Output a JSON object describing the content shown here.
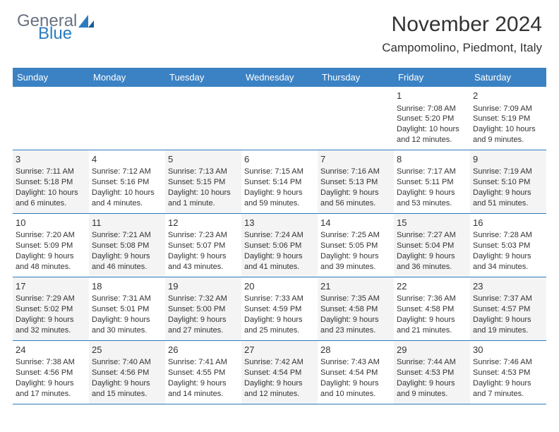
{
  "logo": {
    "general": "General",
    "blue": "Blue"
  },
  "title": "November 2024",
  "location": "Campomolino, Piedmont, Italy",
  "colors": {
    "header_bg": "#3b82c4",
    "border": "#2b7bbf",
    "text": "#333333",
    "shaded": "#f4f4f4",
    "logo_gray": "#6b7280",
    "logo_blue": "#2b7bbf"
  },
  "dayNames": [
    "Sunday",
    "Monday",
    "Tuesday",
    "Wednesday",
    "Thursday",
    "Friday",
    "Saturday"
  ],
  "weeks": [
    [
      null,
      null,
      null,
      null,
      null,
      {
        "n": "1",
        "sr": "7:08 AM",
        "ss": "5:20 PM",
        "dl": "10 hours and 12 minutes."
      },
      {
        "n": "2",
        "sr": "7:09 AM",
        "ss": "5:19 PM",
        "dl": "10 hours and 9 minutes."
      }
    ],
    [
      {
        "n": "3",
        "sr": "7:11 AM",
        "ss": "5:18 PM",
        "dl": "10 hours and 6 minutes."
      },
      {
        "n": "4",
        "sr": "7:12 AM",
        "ss": "5:16 PM",
        "dl": "10 hours and 4 minutes."
      },
      {
        "n": "5",
        "sr": "7:13 AM",
        "ss": "5:15 PM",
        "dl": "10 hours and 1 minute."
      },
      {
        "n": "6",
        "sr": "7:15 AM",
        "ss": "5:14 PM",
        "dl": "9 hours and 59 minutes."
      },
      {
        "n": "7",
        "sr": "7:16 AM",
        "ss": "5:13 PM",
        "dl": "9 hours and 56 minutes."
      },
      {
        "n": "8",
        "sr": "7:17 AM",
        "ss": "5:11 PM",
        "dl": "9 hours and 53 minutes."
      },
      {
        "n": "9",
        "sr": "7:19 AM",
        "ss": "5:10 PM",
        "dl": "9 hours and 51 minutes."
      }
    ],
    [
      {
        "n": "10",
        "sr": "7:20 AM",
        "ss": "5:09 PM",
        "dl": "9 hours and 48 minutes."
      },
      {
        "n": "11",
        "sr": "7:21 AM",
        "ss": "5:08 PM",
        "dl": "9 hours and 46 minutes."
      },
      {
        "n": "12",
        "sr": "7:23 AM",
        "ss": "5:07 PM",
        "dl": "9 hours and 43 minutes."
      },
      {
        "n": "13",
        "sr": "7:24 AM",
        "ss": "5:06 PM",
        "dl": "9 hours and 41 minutes."
      },
      {
        "n": "14",
        "sr": "7:25 AM",
        "ss": "5:05 PM",
        "dl": "9 hours and 39 minutes."
      },
      {
        "n": "15",
        "sr": "7:27 AM",
        "ss": "5:04 PM",
        "dl": "9 hours and 36 minutes."
      },
      {
        "n": "16",
        "sr": "7:28 AM",
        "ss": "5:03 PM",
        "dl": "9 hours and 34 minutes."
      }
    ],
    [
      {
        "n": "17",
        "sr": "7:29 AM",
        "ss": "5:02 PM",
        "dl": "9 hours and 32 minutes."
      },
      {
        "n": "18",
        "sr": "7:31 AM",
        "ss": "5:01 PM",
        "dl": "9 hours and 30 minutes."
      },
      {
        "n": "19",
        "sr": "7:32 AM",
        "ss": "5:00 PM",
        "dl": "9 hours and 27 minutes."
      },
      {
        "n": "20",
        "sr": "7:33 AM",
        "ss": "4:59 PM",
        "dl": "9 hours and 25 minutes."
      },
      {
        "n": "21",
        "sr": "7:35 AM",
        "ss": "4:58 PM",
        "dl": "9 hours and 23 minutes."
      },
      {
        "n": "22",
        "sr": "7:36 AM",
        "ss": "4:58 PM",
        "dl": "9 hours and 21 minutes."
      },
      {
        "n": "23",
        "sr": "7:37 AM",
        "ss": "4:57 PM",
        "dl": "9 hours and 19 minutes."
      }
    ],
    [
      {
        "n": "24",
        "sr": "7:38 AM",
        "ss": "4:56 PM",
        "dl": "9 hours and 17 minutes."
      },
      {
        "n": "25",
        "sr": "7:40 AM",
        "ss": "4:56 PM",
        "dl": "9 hours and 15 minutes."
      },
      {
        "n": "26",
        "sr": "7:41 AM",
        "ss": "4:55 PM",
        "dl": "9 hours and 14 minutes."
      },
      {
        "n": "27",
        "sr": "7:42 AM",
        "ss": "4:54 PM",
        "dl": "9 hours and 12 minutes."
      },
      {
        "n": "28",
        "sr": "7:43 AM",
        "ss": "4:54 PM",
        "dl": "9 hours and 10 minutes."
      },
      {
        "n": "29",
        "sr": "7:44 AM",
        "ss": "4:53 PM",
        "dl": "9 hours and 9 minutes."
      },
      {
        "n": "30",
        "sr": "7:46 AM",
        "ss": "4:53 PM",
        "dl": "9 hours and 7 minutes."
      }
    ]
  ],
  "labels": {
    "sunrise": "Sunrise: ",
    "sunset": "Sunset: ",
    "daylight": "Daylight: "
  }
}
